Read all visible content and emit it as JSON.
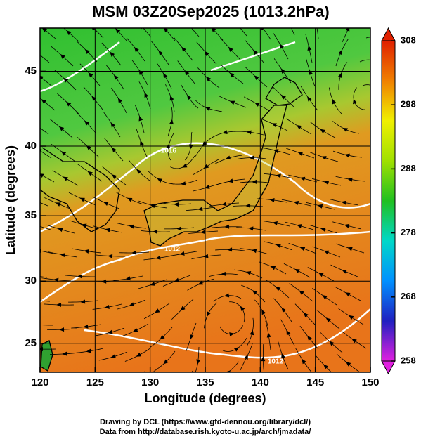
{
  "chart_data": {
    "type": "map",
    "title": "MSM 03Z20Sep2025 (1013.2hPa)",
    "x_label": "Longitude (degrees)",
    "y_label": "Latitude  (degrees)",
    "xlim": [
      120,
      150
    ],
    "ylim": [
      22.6,
      47.7
    ],
    "xticks": [
      120,
      125,
      130,
      135,
      140,
      145,
      150
    ],
    "yticks": [
      25,
      30,
      35,
      40,
      45
    ],
    "y_scale": "mercator",
    "grid": true,
    "annotations": [
      "1016",
      "1012",
      "1012"
    ],
    "colorbar": {
      "lim": [
        258,
        308
      ],
      "ticks": [
        258,
        268,
        278,
        288,
        298,
        308
      ],
      "colors": [
        "#e020e0",
        "#2020c0",
        "#0090ff",
        "#00d8c8",
        "#20c020",
        "#a0e000",
        "#f0f000",
        "#f08000",
        "#e02000"
      ]
    }
  },
  "footer": [
    "Drawing by DCL (https://www.gfd-dennou.org/library/dcl/)",
    "Data from http://database.rish.kyoto-u.ac.jp/arch/jmadata/"
  ]
}
